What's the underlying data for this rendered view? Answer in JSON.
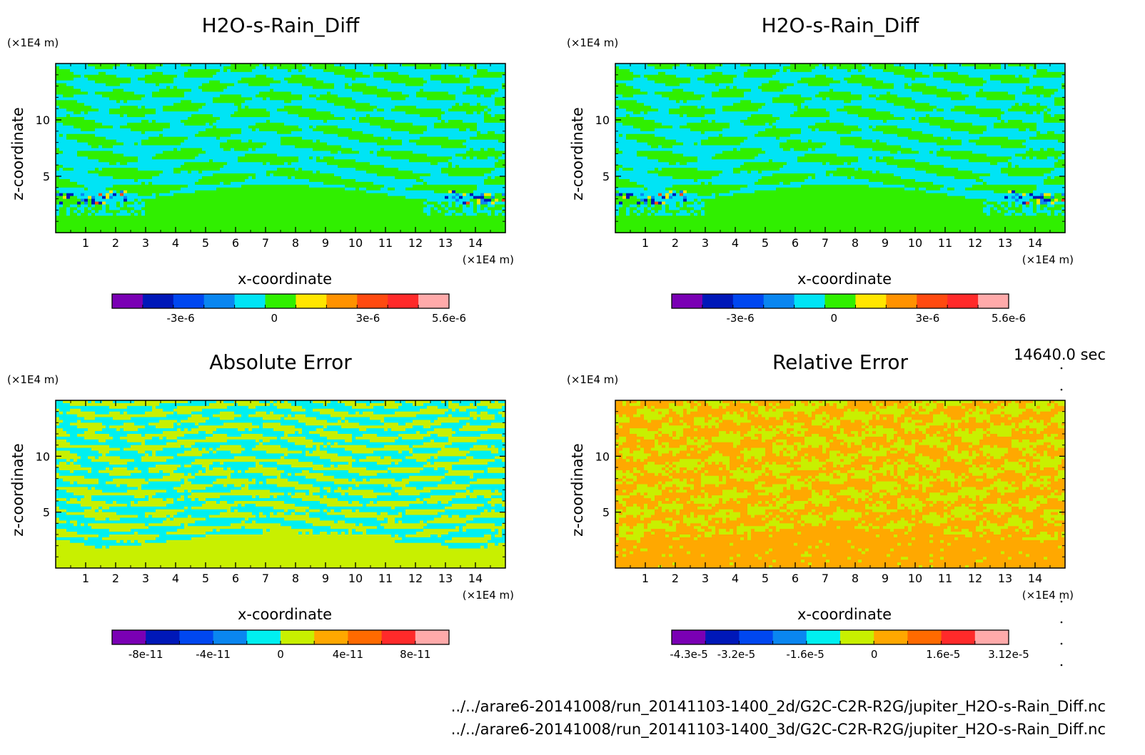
{
  "chart_data": [
    {
      "type": "heatmap",
      "panel": "top-left",
      "title": "H2O-s-Rain_Diff",
      "xlabel": "x-coordinate",
      "ylabel": "z-coordinate",
      "x_unit": "(×1E4 m)",
      "y_unit": "(×1E4 m)",
      "xlim": [
        0,
        15
      ],
      "ylim": [
        0,
        15
      ],
      "x_ticks": [
        "1",
        "2",
        "3",
        "4",
        "5",
        "6",
        "7",
        "8",
        "9",
        "10",
        "11",
        "12",
        "13",
        "14"
      ],
      "y_ticks": [
        "5",
        "10"
      ],
      "colorbar": {
        "colors": [
          "#7a00b4",
          "#0018b8",
          "#0047f0",
          "#0a86f0",
          "#00e4f5",
          "#30ef00",
          "#ffe600",
          "#ff9200",
          "#ff4a10",
          "#ff2a2a",
          "#ffaaaa"
        ],
        "tick_labels": [
          "-3e-6",
          "0",
          "3e-6",
          "5.6e-6"
        ],
        "tick_values": [
          -3e-06,
          0,
          3e-06,
          5.6e-06
        ]
      },
      "scheme": "diff",
      "dominant_colors": [
        "#30ef00",
        "#00e4f5"
      ]
    },
    {
      "type": "heatmap",
      "panel": "top-right",
      "title": "H2O-s-Rain_Diff",
      "xlabel": "x-coordinate",
      "ylabel": "z-coordinate",
      "x_unit": "(×1E4 m)",
      "y_unit": "(×1E4 m)",
      "xlim": [
        0,
        15
      ],
      "ylim": [
        0,
        15
      ],
      "x_ticks": [
        "1",
        "2",
        "3",
        "4",
        "5",
        "6",
        "7",
        "8",
        "9",
        "10",
        "11",
        "12",
        "13",
        "14"
      ],
      "y_ticks": [
        "5",
        "10"
      ],
      "colorbar": {
        "colors": [
          "#7a00b4",
          "#0018b8",
          "#0047f0",
          "#0a86f0",
          "#00e4f5",
          "#30ef00",
          "#ffe600",
          "#ff9200",
          "#ff4a10",
          "#ff2a2a",
          "#ffaaaa"
        ],
        "tick_labels": [
          "-3e-6",
          "0",
          "3e-6",
          "5.6e-6"
        ],
        "tick_values": [
          -3e-06,
          0,
          3e-06,
          5.6e-06
        ]
      },
      "scheme": "diff",
      "dominant_colors": [
        "#30ef00",
        "#00e4f5"
      ]
    },
    {
      "type": "heatmap",
      "panel": "bottom-left",
      "title": "Absolute Error",
      "xlabel": "x-coordinate",
      "ylabel": "z-coordinate",
      "x_unit": "(×1E4 m)",
      "y_unit": "(×1E4 m)",
      "xlim": [
        0,
        15
      ],
      "ylim": [
        0,
        15
      ],
      "x_ticks": [
        "1",
        "2",
        "3",
        "4",
        "5",
        "6",
        "7",
        "8",
        "9",
        "10",
        "11",
        "12",
        "13",
        "14"
      ],
      "y_ticks": [
        "5",
        "10"
      ],
      "colorbar": {
        "colors": [
          "#7a00b4",
          "#0018b8",
          "#0047f0",
          "#0a86f0",
          "#00f0f0",
          "#c8f000",
          "#ffa800",
          "#ff6a00",
          "#ff2a2a",
          "#ffaaaa"
        ],
        "tick_labels": [
          "-8e-11",
          "-4e-11",
          "0",
          "4e-11",
          "8e-11"
        ],
        "tick_values": [
          -8e-11,
          -4e-11,
          0,
          4e-11,
          8e-11
        ]
      },
      "scheme": "abs",
      "dominant_colors": [
        "#c8f000",
        "#00f0f0"
      ]
    },
    {
      "type": "heatmap",
      "panel": "bottom-right",
      "title": "Relative Error",
      "xlabel": "x-coordinate",
      "ylabel": "z-coordinate",
      "x_unit": "(×1E4 m)",
      "y_unit": "(×1E4 m)",
      "xlim": [
        0,
        15
      ],
      "ylim": [
        0,
        15
      ],
      "x_ticks": [
        "1",
        "2",
        "3",
        "4",
        "5",
        "6",
        "7",
        "8",
        "9",
        "10",
        "11",
        "12",
        "13",
        "14"
      ],
      "y_ticks": [
        "5",
        "10"
      ],
      "colorbar": {
        "colors": [
          "#7a00b4",
          "#0018b8",
          "#0047f0",
          "#0a86f0",
          "#00f0f0",
          "#c8f000",
          "#ffa800",
          "#ff6a00",
          "#ff2a2a",
          "#ffaaaa"
        ],
        "tick_labels": [
          "-4.3e-5",
          "-3.2e-5",
          "-1.6e-5",
          "0",
          "1.6e-5",
          "3.12e-5"
        ],
        "tick_values": [
          -4.3e-05,
          -3.2e-05,
          -1.6e-05,
          0,
          1.6e-05,
          3.12e-05
        ]
      },
      "scheme": "rel",
      "dominant_colors": [
        "#ffa800",
        "#c8f000"
      ]
    }
  ],
  "time_label": "14640.0 sec",
  "footer": {
    "file_2d": "../../arare6-20141008/run_20141103-1400_2d/G2C-C2R-R2G/jupiter_H2O-s-Rain_Diff.nc",
    "file_3d": "../../arare6-20141008/run_20141103-1400_3d/G2C-C2R-R2G/jupiter_H2O-s-Rain_Diff.nc"
  }
}
